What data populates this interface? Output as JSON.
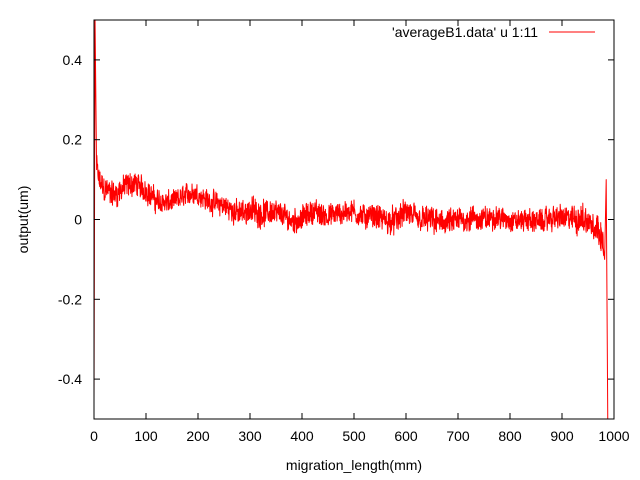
{
  "chart_data": {
    "type": "line",
    "title": "",
    "xlabel": "migration_length(mm)",
    "ylabel": "output(um)",
    "xlim": [
      0,
      1000
    ],
    "ylim": [
      -0.5,
      0.5
    ],
    "grid": false,
    "legend_position": "top-right",
    "x_ticks": [
      0,
      100,
      200,
      300,
      400,
      500,
      600,
      700,
      800,
      900,
      1000
    ],
    "y_ticks": [
      -0.4,
      -0.2,
      0,
      0.2,
      0.4
    ],
    "x_tick_labels": [
      "0",
      "100",
      "200",
      "300",
      "400",
      "500",
      "600",
      "700",
      "800",
      "900",
      "1000"
    ],
    "y_tick_labels": [
      "-0.4",
      "-0.2",
      "0",
      "0.2",
      "0.4"
    ],
    "series": [
      {
        "name": "'averageB1.data' u 1:11",
        "color": "#ff0000",
        "trend": {
          "x": [
            0,
            2,
            5,
            10,
            20,
            40,
            60,
            80,
            100,
            120,
            140,
            160,
            180,
            200,
            220,
            240,
            260,
            280,
            300,
            320,
            340,
            360,
            380,
            400,
            420,
            440,
            460,
            480,
            500,
            520,
            540,
            560,
            580,
            600,
            620,
            640,
            660,
            680,
            700,
            720,
            740,
            760,
            780,
            800,
            820,
            840,
            860,
            880,
            900,
            920,
            940,
            960,
            975,
            982,
            985,
            988
          ],
          "y": [
            -0.46,
            0.5,
            0.13,
            0.09,
            0.07,
            0.06,
            0.08,
            0.09,
            0.08,
            0.05,
            0.04,
            0.05,
            0.06,
            0.06,
            0.05,
            0.04,
            0.03,
            0.02,
            0.02,
            0.01,
            0.02,
            0.01,
            0.0,
            0.01,
            0.02,
            0.01,
            0.01,
            0.01,
            0.02,
            0.01,
            0.01,
            0.0,
            0.0,
            0.01,
            0.0,
            0.0,
            -0.01,
            0.0,
            0.0,
            0.0,
            0.0,
            0.0,
            0.0,
            0.0,
            0.0,
            0.0,
            0.0,
            0.0,
            0.0,
            0.0,
            0.0,
            -0.01,
            -0.02,
            -0.1,
            0.1,
            -0.5
          ]
        },
        "noise_amplitude": {
          "x": [
            0,
            50,
            100,
            200,
            300,
            400,
            500,
            600,
            700,
            800,
            900,
            950,
            985
          ],
          "y": [
            0.05,
            0.05,
            0.045,
            0.04,
            0.05,
            0.045,
            0.045,
            0.05,
            0.05,
            0.04,
            0.045,
            0.06,
            0.06
          ]
        }
      }
    ]
  }
}
